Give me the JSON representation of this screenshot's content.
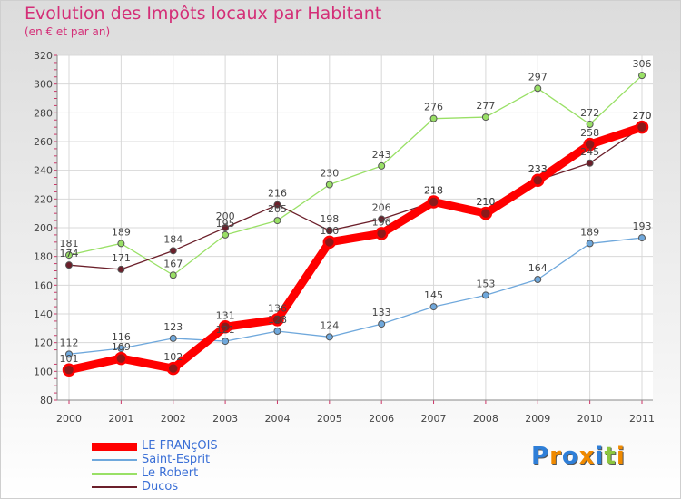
{
  "title": "Evolution des Impôts locaux par Habitant",
  "subtitle": "(en € et par an)",
  "brand": {
    "logo_text": "Proxiti"
  },
  "chart_data": {
    "type": "line",
    "title": "Evolution des Impôts locaux par Habitant",
    "subtitle": "(en € et par an)",
    "xlabel": "",
    "ylabel": "",
    "ylim": [
      80,
      320
    ],
    "yticks": [
      80,
      100,
      120,
      140,
      160,
      180,
      200,
      220,
      240,
      260,
      280,
      300,
      320
    ],
    "categories": [
      "2000",
      "2001",
      "2002",
      "2003",
      "2004",
      "2005",
      "2006",
      "2007",
      "2008",
      "2009",
      "2010",
      "2011"
    ],
    "legend_position": "bottom-left",
    "series": [
      {
        "name": "LE FRANçOIS",
        "color": "#ff0000",
        "values": [
          101,
          109,
          102,
          131,
          136,
          190,
          196,
          218,
          210,
          233,
          258,
          270
        ]
      },
      {
        "name": "Saint-Esprit",
        "color": "#6fa8dc",
        "values": [
          112,
          116,
          123,
          121,
          128,
          124,
          133,
          145,
          153,
          164,
          189,
          193
        ]
      },
      {
        "name": "Le Robert",
        "color": "#99e066",
        "values": [
          181,
          189,
          167,
          195,
          205,
          230,
          243,
          276,
          277,
          297,
          272,
          306
        ]
      },
      {
        "name": "Ducos",
        "color": "#6b1f2a",
        "values": [
          174,
          171,
          184,
          200,
          216,
          198,
          206,
          218,
          210,
          233,
          245,
          270
        ]
      }
    ]
  }
}
